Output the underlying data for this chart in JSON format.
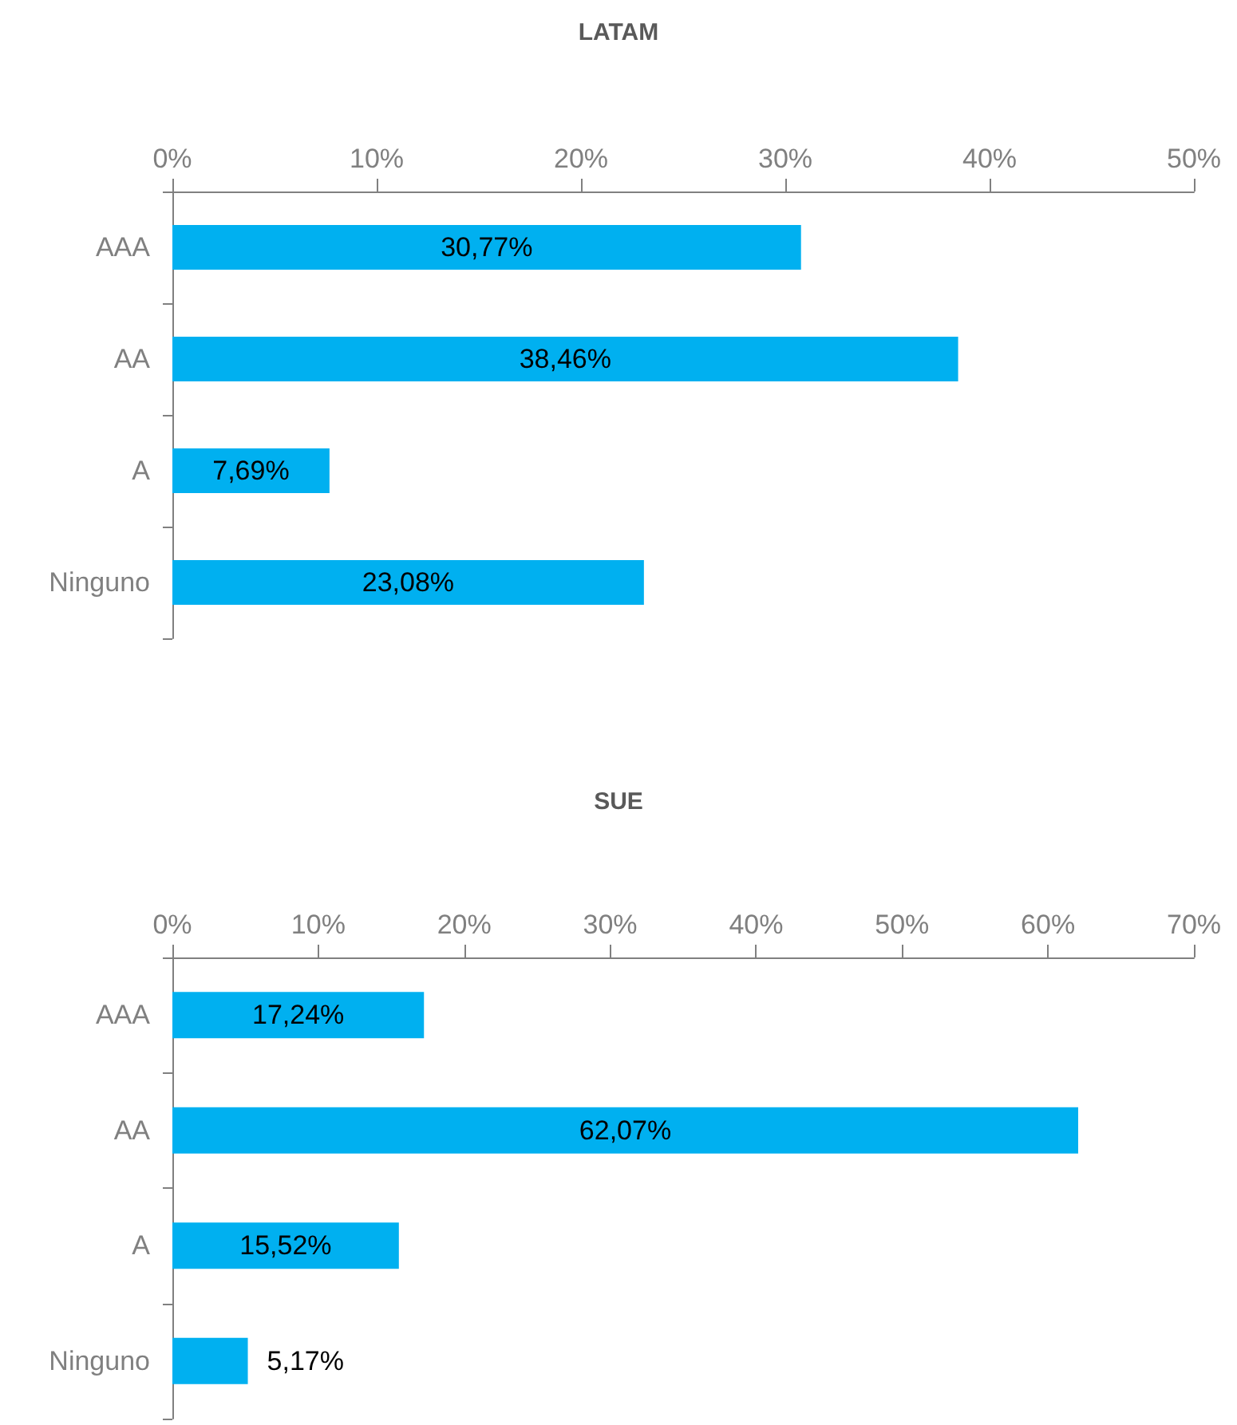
{
  "chart_data": [
    {
      "type": "bar",
      "orientation": "horizontal",
      "title": "LATAM",
      "categories": [
        "AAA",
        "AA",
        "A",
        "Ninguno"
      ],
      "values": [
        30.77,
        38.46,
        7.69,
        23.08
      ],
      "value_labels": [
        "30,77%",
        "38,46%",
        "7,69%",
        "23,08%"
      ],
      "color": "#00b0f0",
      "xlim": [
        0,
        50
      ],
      "xticks": [
        {
          "value": 0,
          "label": "0%"
        },
        {
          "value": 10,
          "label": "10%"
        },
        {
          "value": 20,
          "label": "20%"
        },
        {
          "value": 30,
          "label": "30%"
        },
        {
          "value": 40,
          "label": "40%"
        },
        {
          "value": 50,
          "label": "50%"
        }
      ],
      "grid": false
    },
    {
      "type": "bar",
      "orientation": "horizontal",
      "title": "SUE",
      "categories": [
        "AAA",
        "AA",
        "A",
        "Ninguno"
      ],
      "values": [
        17.24,
        62.07,
        15.52,
        5.17
      ],
      "value_labels": [
        "17,24%",
        "62,07%",
        "15,52%",
        "5,17%"
      ],
      "color": "#00b0f0",
      "xlim": [
        0,
        70
      ],
      "xticks": [
        {
          "value": 0,
          "label": "0%"
        },
        {
          "value": 10,
          "label": "10%"
        },
        {
          "value": 20,
          "label": "20%"
        },
        {
          "value": 30,
          "label": "30%"
        },
        {
          "value": 40,
          "label": "40%"
        },
        {
          "value": 50,
          "label": "50%"
        },
        {
          "value": 60,
          "label": "60%"
        },
        {
          "value": 70,
          "label": "70%"
        }
      ],
      "grid": false
    }
  ]
}
